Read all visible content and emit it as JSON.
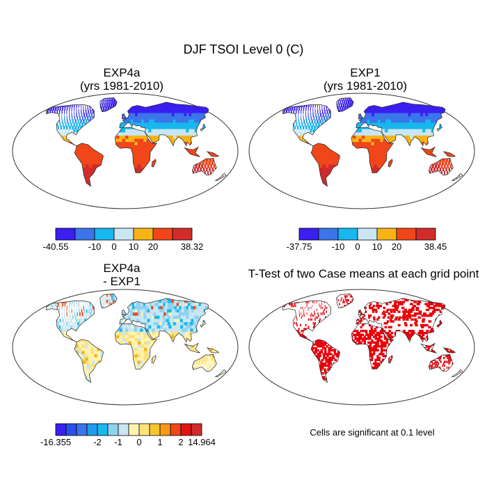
{
  "figure": {
    "title": "DJF TSOI Level 0 (C)",
    "footnote": "Cells are significant at 0.1 level"
  },
  "panels": [
    {
      "id": "exp4a",
      "title_line1": "EXP4a",
      "title_line2": "(yrs 1981-2010)",
      "colorbar": {
        "colors": [
          "#3a1ff0",
          "#3c74ea",
          "#18b7ee",
          "#c9e6f2",
          "#f7b416",
          "#f0461a",
          "#d12b2b"
        ],
        "labels": [
          "-40.55",
          "-10",
          "0",
          "10",
          "20",
          "38.32"
        ],
        "label_positions": [
          0,
          2,
          3,
          4,
          5,
          7
        ]
      }
    },
    {
      "id": "exp1",
      "title_line1": "EXP1",
      "title_line2": "(yrs 1981-2010)",
      "colorbar": {
        "colors": [
          "#3a1ff0",
          "#3c74ea",
          "#18b7ee",
          "#c9e6f2",
          "#f7b416",
          "#f0461a",
          "#d12b2b"
        ],
        "labels": [
          "-37.75",
          "-10",
          "0",
          "10",
          "20",
          "38.45"
        ],
        "label_positions": [
          0,
          2,
          3,
          4,
          5,
          7
        ]
      }
    },
    {
      "id": "diff",
      "title_line1": "EXP4a",
      "title_line2": "- EXP1",
      "colorbar": {
        "colors": [
          "#3a1ff0",
          "#2b4fe8",
          "#3c74ea",
          "#1f9ae8",
          "#18b7ee",
          "#8fd3f0",
          "#c9e6f2",
          "#fff3b0",
          "#fde27a",
          "#f7c431",
          "#f59a1a",
          "#f0461a",
          "#e01414",
          "#d12b2b"
        ],
        "labels": [
          "-16.355",
          "-2",
          "-1",
          "0",
          "1",
          "2",
          "14.964"
        ],
        "label_positions": [
          0,
          4,
          6,
          8,
          10,
          12,
          14
        ]
      }
    },
    {
      "id": "ttest",
      "title_line1": "T-Test of two Case means at each grid point",
      "title_line2": ""
    }
  ],
  "fields": {
    "colors": {
      "deep_blue": "#3a1ff0",
      "blue": "#3c74ea",
      "cyan": "#18b7ee",
      "light_blue": "#c9e6f2",
      "orange": "#f7b416",
      "red_orange": "#f0461a",
      "red": "#d12b2b",
      "light_yellow": "#fde27a",
      "pale_yellow": "#fff3b0",
      "sig_red": "#e8000b",
      "coast": "#222222"
    }
  }
}
